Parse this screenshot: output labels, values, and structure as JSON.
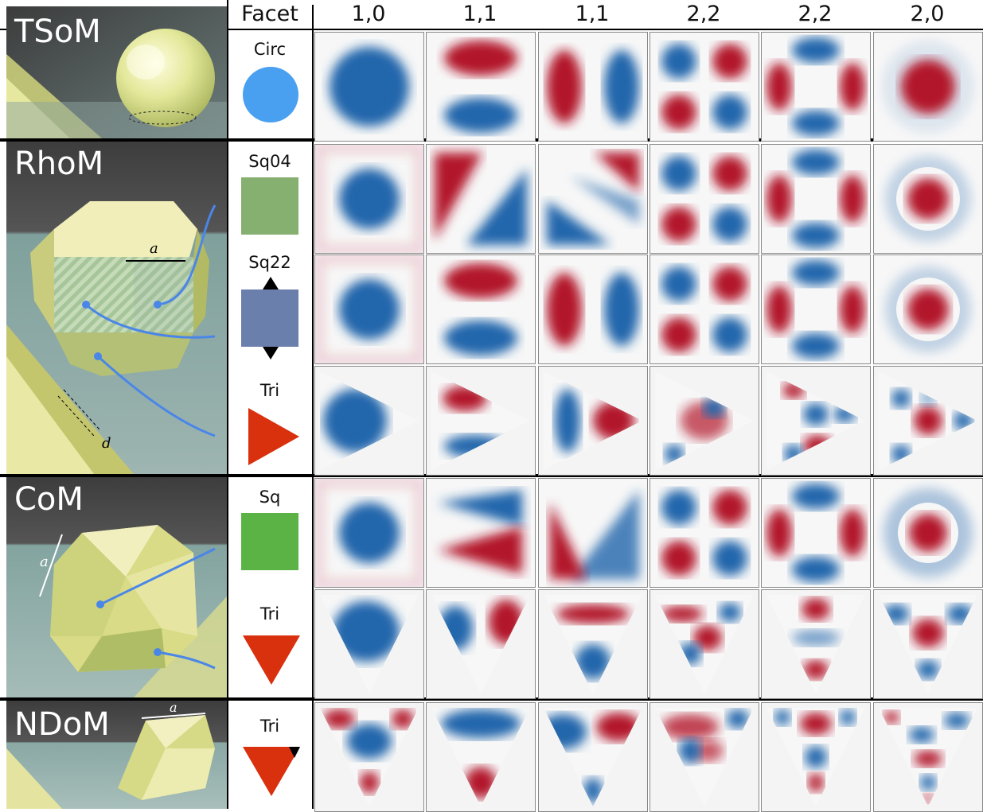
{
  "header": {
    "facet_label": "Facet",
    "modes": [
      "1,0",
      "1,1",
      "1,1",
      "2,2",
      "2,2",
      "2,0"
    ]
  },
  "blocks": [
    {
      "name": "TSoM",
      "facets": [
        {
          "label": "Circ",
          "shape": "circle",
          "color": "#4aa0f0"
        }
      ]
    },
    {
      "name": "RhoM",
      "facets": [
        {
          "label": "Sq04",
          "shape": "square",
          "color": "#86b070"
        },
        {
          "label": "Sq22",
          "shape": "square-arrows",
          "color": "#6b7fad"
        },
        {
          "label": "Tri",
          "shape": "triangle-up",
          "color": "#d9300e"
        }
      ],
      "annotations": {
        "edge": "a",
        "gap": "d"
      }
    },
    {
      "name": "CoM",
      "facets": [
        {
          "label": "Sq",
          "shape": "square",
          "color": "#5bb346"
        },
        {
          "label": "Tri",
          "shape": "triangle-down",
          "color": "#d9300e"
        }
      ],
      "annotations": {
        "edge": "a"
      }
    },
    {
      "name": "NDoM",
      "facets": [
        {
          "label": "Tri",
          "shape": "triangle-down-notch",
          "color": "#d9300e"
        }
      ],
      "annotations": {
        "edge": "a"
      }
    }
  ],
  "colors": {
    "positive": "#b2182b",
    "negative": "#2166ac",
    "neutral": "#f7f7f7",
    "arrow": "#4a86e8"
  }
}
